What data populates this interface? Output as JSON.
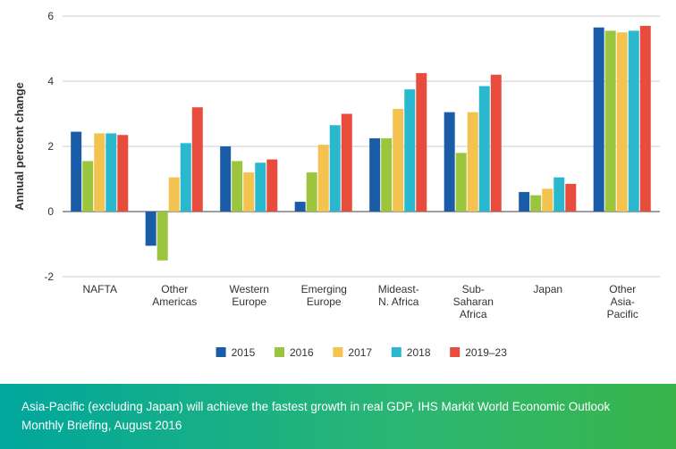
{
  "chart": {
    "type": "bar",
    "y_axis_label": "Annual percent change",
    "ylim": [
      -2,
      6
    ],
    "ytick_step": 2,
    "yticks": [
      -2,
      0,
      2,
      4,
      6
    ],
    "categories": [
      "NAFTA",
      "Other\nAmericas",
      "Western\nEurope",
      "Emerging\nEurope",
      "Mideast-\nN. Africa",
      "Sub-\nSaharan\nAfrica",
      "Japan",
      "Other\nAsia-\nPacific"
    ],
    "series": [
      {
        "name": "2015",
        "color": "#1a5ca8",
        "values": [
          2.45,
          -1.05,
          2.0,
          0.3,
          2.25,
          3.05,
          0.6,
          5.65
        ]
      },
      {
        "name": "2016",
        "color": "#9bc53d",
        "values": [
          1.55,
          -1.5,
          1.55,
          1.2,
          2.25,
          1.8,
          0.5,
          5.55
        ]
      },
      {
        "name": "2017",
        "color": "#f3c24f",
        "values": [
          2.4,
          1.05,
          1.2,
          2.05,
          3.15,
          3.05,
          0.7,
          5.5
        ]
      },
      {
        "name": "2018",
        "color": "#29b8ce",
        "values": [
          2.4,
          2.1,
          1.5,
          2.65,
          3.75,
          3.85,
          1.05,
          5.55
        ]
      },
      {
        "name": "2019–23",
        "color": "#e74c3c",
        "values": [
          2.35,
          3.2,
          1.6,
          3.0,
          4.25,
          4.2,
          0.85,
          5.7
        ]
      }
    ],
    "background_color": "#ffffff",
    "grid_color": "#cccccc",
    "zero_line_color": "#666666",
    "axis_font_size": 13,
    "tick_font_size": 12,
    "bar_group_width": 0.78,
    "bar_inner_gap": 0.08
  },
  "caption": {
    "text": "Asia-Pacific (excluding Japan) will achieve the fastest growth in real GDP, IHS Markit World Economic Outlook Monthly Briefing, August 2016",
    "gradient_start": "#00a79d",
    "gradient_mid": "#2bb673",
    "gradient_end": "#39b54a",
    "text_color": "#ffffff",
    "font_size": 13.5
  }
}
